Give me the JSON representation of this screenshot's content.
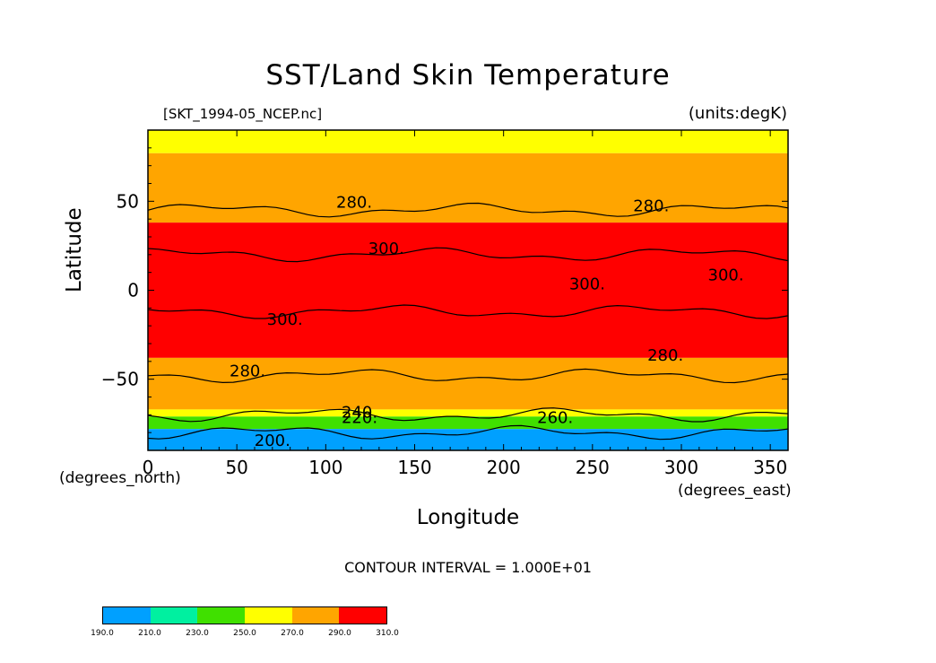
{
  "chart_data": {
    "type": "heatmap",
    "title": "SST/Land Skin Temperature",
    "file_label": "[SKT_1994-05_NCEP.nc]",
    "units_label": "(units:degK)",
    "xlabel": "Longitude",
    "ylabel": "Latitude",
    "x_unit_label": "(degrees_east)",
    "y_unit_label": "(degrees_north)",
    "xlim": [
      0,
      360
    ],
    "ylim": [
      -90,
      90
    ],
    "x_ticks": [
      0,
      50,
      100,
      150,
      200,
      250,
      300,
      350
    ],
    "x_tick_labels": [
      "0",
      "50",
      "100",
      "150",
      "200",
      "250",
      "300",
      "350"
    ],
    "y_ticks": [
      50,
      0,
      -50
    ],
    "y_tick_labels": [
      "50",
      "0",
      "−50"
    ],
    "contour_interval_text": "CONTOUR INTERVAL = 1.000E+01",
    "contour_labels": [
      {
        "text": "280.",
        "lon": 116,
        "lat": 49
      },
      {
        "text": "280.",
        "lon": 283,
        "lat": 47
      },
      {
        "text": "300.",
        "lon": 134,
        "lat": 23
      },
      {
        "text": "300.",
        "lon": 247,
        "lat": 3
      },
      {
        "text": "300.",
        "lon": 325,
        "lat": 8
      },
      {
        "text": "300.",
        "lon": 77,
        "lat": -17
      },
      {
        "text": "280.",
        "lon": 291,
        "lat": -37
      },
      {
        "text": "280.",
        "lon": 56,
        "lat": -46
      },
      {
        "text": "240.",
        "lon": 119,
        "lat": -69
      },
      {
        "text": "220.",
        "lon": 119,
        "lat": -72
      },
      {
        "text": "260.",
        "lon": 229,
        "lat": -72
      },
      {
        "text": "200.",
        "lon": 70,
        "lat": -85
      }
    ],
    "color_levels": [
      190.0,
      210.0,
      230.0,
      250.0,
      270.0,
      290.0,
      310.0
    ],
    "color_level_labels": [
      "190.0",
      "210.0",
      "230.0",
      "250.0",
      "270.0",
      "290.0",
      "310.0"
    ],
    "band_colors": [
      "#00a0ff",
      "#00f0a0",
      "#40e000",
      "#ffff00",
      "#ffa500",
      "#ff0000"
    ],
    "zonal_bands": [
      {
        "lat_top": 90,
        "lat_bottom": 77,
        "value_range": "250-270"
      },
      {
        "lat_top": 77,
        "lat_bottom": 38,
        "value_range": "270-290"
      },
      {
        "lat_top": 38,
        "lat_bottom": -38,
        "value_range": "290-310"
      },
      {
        "lat_top": -38,
        "lat_bottom": -67,
        "value_range": "270-290"
      },
      {
        "lat_top": -67,
        "lat_bottom": -71,
        "value_range": "250-270"
      },
      {
        "lat_top": -71,
        "lat_bottom": -78,
        "value_range": "230-250"
      },
      {
        "lat_top": -78,
        "lat_bottom": -90,
        "value_range": "190-210"
      }
    ],
    "contour_lines": [
      {
        "level": 280,
        "lat": 45
      },
      {
        "level": 300,
        "lat": 20
      },
      {
        "level": 300,
        "lat": -12
      },
      {
        "level": 280,
        "lat": -48
      },
      {
        "level": 260,
        "lat": -70
      },
      {
        "level": 220,
        "lat": -80
      }
    ],
    "grid": false
  }
}
